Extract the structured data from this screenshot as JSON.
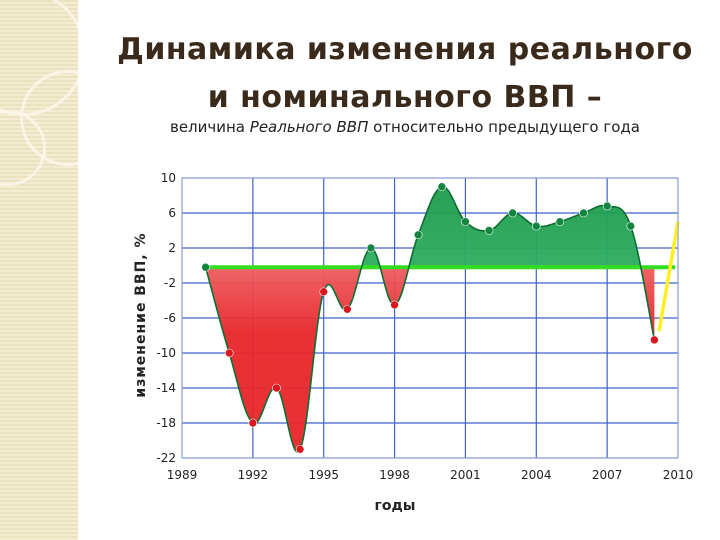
{
  "slide": {
    "title_line1": "Динамика изменения реального",
    "title_line2": "и номинального ВВП –",
    "subtitle_prefix": "величина ",
    "subtitle_emphasis": "Реального ВВП",
    "subtitle_suffix": " относительно предыдущего года"
  },
  "chart_data": {
    "type": "area",
    "title": "",
    "xlabel": "годы",
    "ylabel": "изменение ВВП, %",
    "xlim": [
      1989,
      2010
    ],
    "ylim": [
      -22,
      10
    ],
    "xticks": [
      "1989",
      "1992",
      "1995",
      "1998",
      "2001",
      "2004",
      "2007",
      "2010"
    ],
    "yticks": [
      "10",
      "6",
      "2",
      "-2",
      "-6",
      "-10",
      "-14",
      "-18",
      "-22"
    ],
    "grid": true,
    "baseline": -0.2,
    "series": [
      {
        "points": [
          [
            1990,
            -0.2
          ],
          [
            1991,
            -10
          ],
          [
            1992,
            -18
          ],
          [
            1993,
            -14
          ],
          [
            1994,
            -21
          ],
          [
            1995,
            -3
          ],
          [
            1996,
            -5
          ],
          [
            1997,
            2
          ],
          [
            1998,
            -4.5
          ],
          [
            1999,
            3.5
          ],
          [
            2000,
            9
          ],
          [
            2001,
            5
          ],
          [
            2002,
            4
          ],
          [
            2003,
            6
          ],
          [
            2004,
            4.5
          ],
          [
            2005,
            5
          ],
          [
            2006,
            6
          ],
          [
            2007,
            6.8
          ],
          [
            2008,
            4.5
          ],
          [
            2009,
            -8.5
          ]
        ]
      },
      {
        "points": [
          [
            2009.2,
            -7.5
          ],
          [
            2010,
            5
          ]
        ]
      }
    ],
    "colors": {
      "negative_dark": "#e8262a",
      "negative_light": "#f7a0a0",
      "positive_dark": "#1c9a4c",
      "positive_light": "#8ee3a8",
      "line": "#0e6e32",
      "baseline": "#33dd22",
      "grid": "#3f62c8",
      "recovery": "#ffee22"
    }
  }
}
